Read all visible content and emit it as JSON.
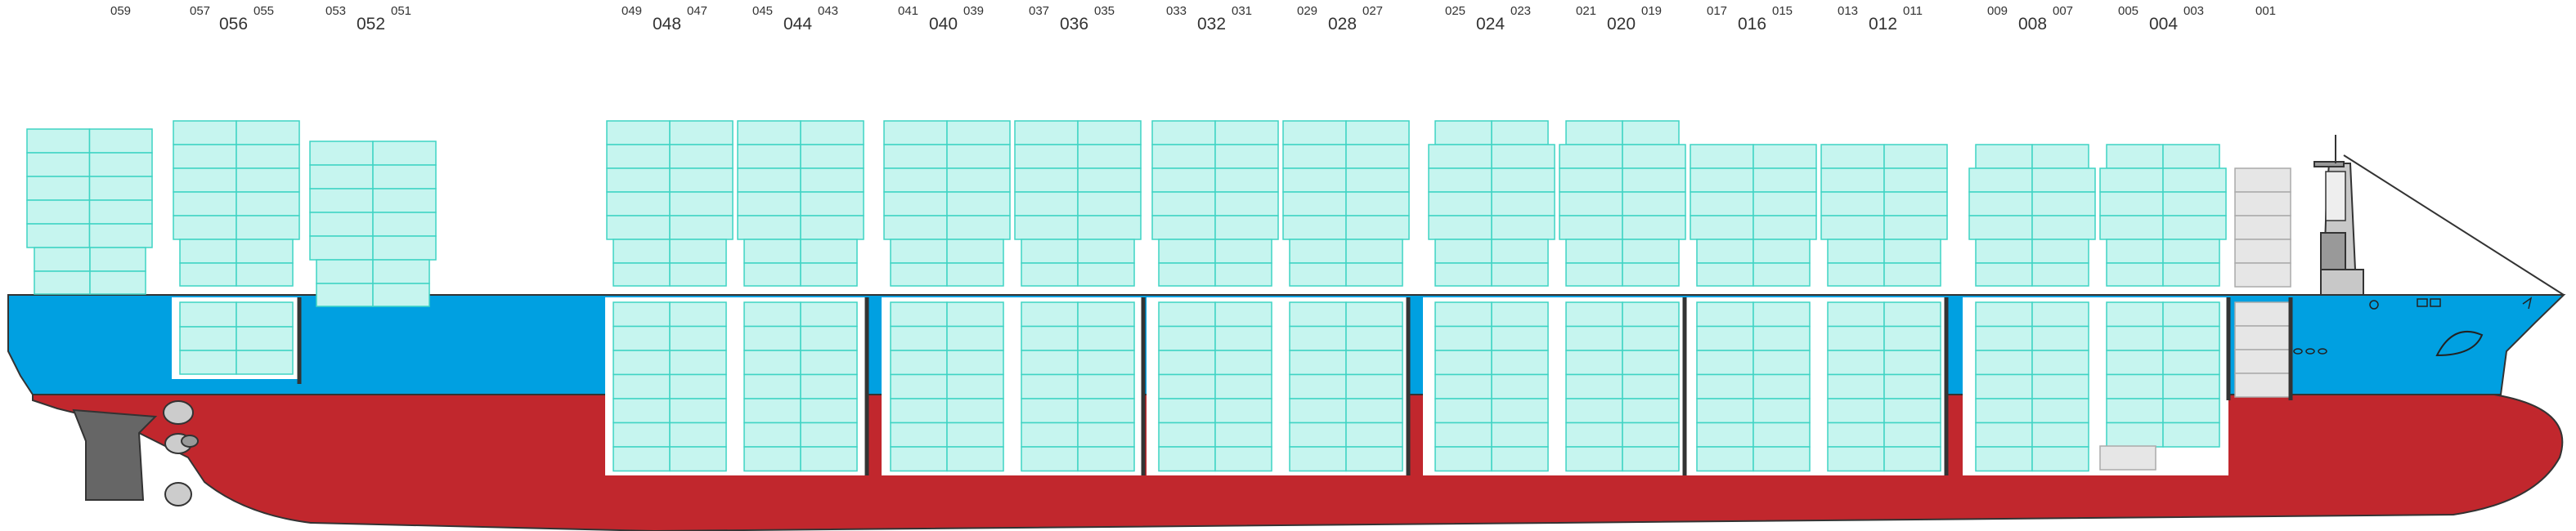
{
  "colors": {
    "hull_red": "#c1272d",
    "hull_blue": "#00a0e1",
    "container_fill": "#c6f5ef",
    "container_stroke": "#3fd4c4",
    "empty_slot_fill": "#e6e6e6",
    "superstructure_fill": "#c8c8c8",
    "hold_fill": "#ffffff"
  },
  "bay_labels": [
    {
      "small_left": "059",
      "big": "",
      "small_right": ""
    },
    {
      "small_left": "057",
      "big": "056",
      "small_right": "055"
    },
    {
      "small_left": "053",
      "big": "052",
      "small_right": "051"
    },
    {
      "small_left": "049",
      "big": "048",
      "small_right": "047"
    },
    {
      "small_left": "045",
      "big": "044",
      "small_right": "043"
    },
    {
      "small_left": "041",
      "big": "040",
      "small_right": "039"
    },
    {
      "small_left": "037",
      "big": "036",
      "small_right": "035"
    },
    {
      "small_left": "033",
      "big": "032",
      "small_right": "031"
    },
    {
      "small_left": "029",
      "big": "028",
      "small_right": "027"
    },
    {
      "small_left": "025",
      "big": "024",
      "small_right": "023"
    },
    {
      "small_left": "021",
      "big": "020",
      "small_right": "019"
    },
    {
      "small_left": "017",
      "big": "016",
      "small_right": "015"
    },
    {
      "small_left": "013",
      "big": "012",
      "small_right": "011"
    },
    {
      "small_left": "009",
      "big": "008",
      "small_right": "007"
    },
    {
      "small_left": "005",
      "big": "004",
      "small_right": "003"
    },
    {
      "small_left": "001",
      "big": "",
      "small_right": ""
    }
  ]
}
